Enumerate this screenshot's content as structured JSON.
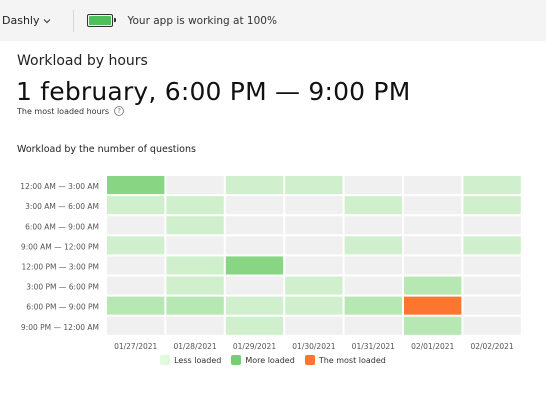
{
  "topbar": {
    "brand": "Dashly",
    "status": "Your app is working at 100%",
    "battery_level": 1.0,
    "battery_color": "#4fc15a"
  },
  "panel": {
    "title": "Workload by hours",
    "big_title": "1 february, 6:00 PM — 9:00 PM",
    "subtitle": "The most loaded hours",
    "help_icon": "?",
    "chart_title": "Workload by the number of questions"
  },
  "legend": [
    {
      "label": "Less loaded",
      "color": "#e4f7e1"
    },
    {
      "label": "More loaded",
      "color": "#76cf72"
    },
    {
      "label": "The most loaded",
      "color": "#fc7630"
    }
  ],
  "colors": {
    "empty": "#f0f0f0",
    "level1": "#d0f0cd",
    "level2": "#b7e7b2",
    "level3": "#88d583",
    "max": "#fc7630"
  },
  "chart_data": {
    "type": "heatmap",
    "title": "Workload by the number of questions",
    "rows": [
      "12:00 AM — 3:00 AM",
      "3:00 AM — 6:00 AM",
      "6:00 AM — 9:00 AM",
      "9:00 AM — 12:00 PM",
      "12:00 PM — 3:00 PM",
      "3:00 PM — 6:00 PM",
      "6:00 PM — 9:00 PM",
      "9:00 PM — 12:00 AM"
    ],
    "columns": [
      "01/27/2021",
      "01/28/2021",
      "01/29/2021",
      "01/30/2021",
      "01/31/2021",
      "02/01/2021",
      "02/02/2021"
    ],
    "levels": [
      [
        3,
        0,
        1,
        1,
        0,
        0,
        1
      ],
      [
        1,
        1,
        0,
        0,
        1,
        0,
        1
      ],
      [
        0,
        1,
        0,
        0,
        0,
        0,
        0
      ],
      [
        1,
        0,
        0,
        0,
        1,
        0,
        1
      ],
      [
        0,
        1,
        3,
        0,
        0,
        0,
        0
      ],
      [
        0,
        1,
        0,
        1,
        0,
        2,
        0
      ],
      [
        2,
        2,
        1,
        1,
        2,
        4,
        0
      ],
      [
        0,
        0,
        1,
        0,
        0,
        2,
        0
      ]
    ],
    "level_scale": "0 = empty, 1 = less loaded, 2-3 = more loaded, 4 = the most loaded"
  }
}
